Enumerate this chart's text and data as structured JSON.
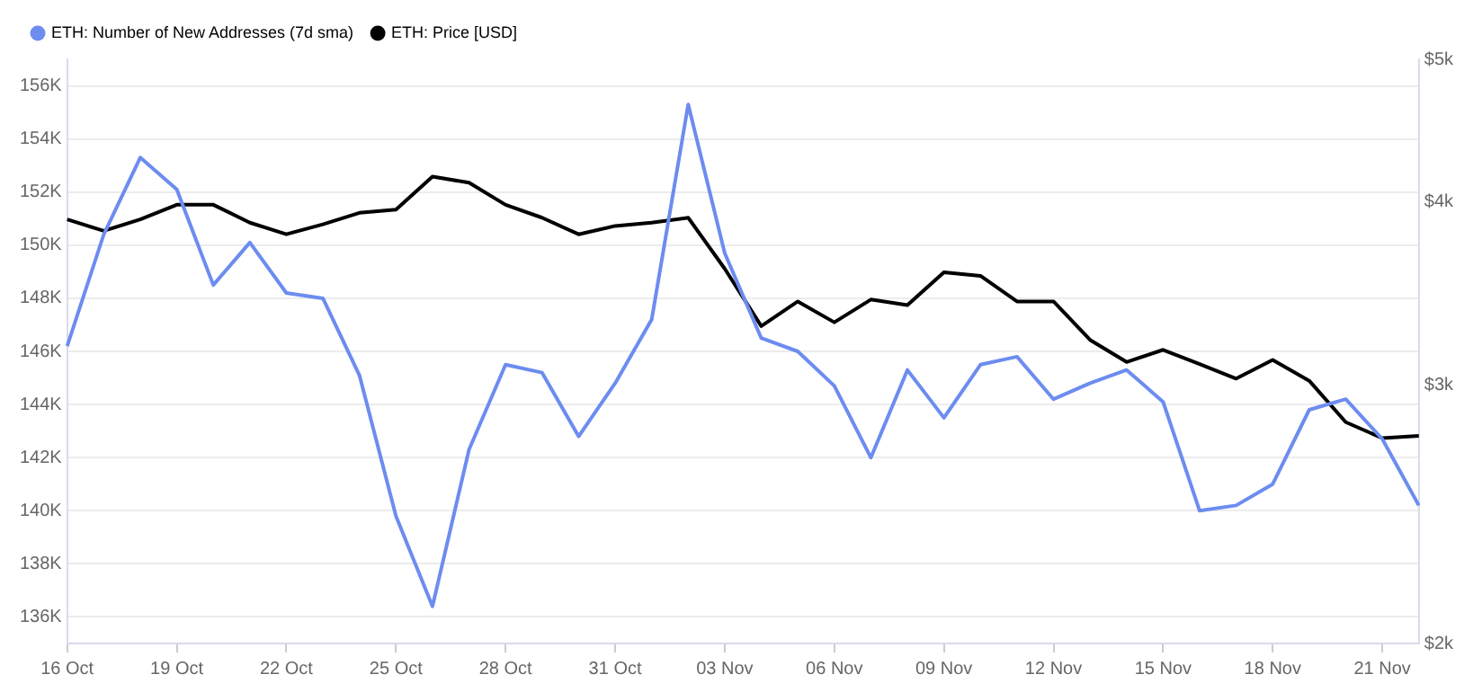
{
  "chart_data": {
    "type": "line",
    "categories": [
      "16 Oct",
      null,
      null,
      "19 Oct",
      null,
      null,
      "22 Oct",
      null,
      null,
      "25 Oct",
      null,
      null,
      "28 Oct",
      null,
      null,
      "31 Oct",
      null,
      null,
      "03 Nov",
      null,
      null,
      "06 Nov",
      null,
      null,
      "09 Nov",
      null,
      null,
      "12 Nov",
      null,
      null,
      "15 Nov",
      null,
      null,
      "18 Nov",
      null,
      null,
      "21 Nov",
      null
    ],
    "series": [
      {
        "name": "ETH: Number of New Addresses (7d sma)",
        "color": "#6c8cf0",
        "values": [
          146200,
          150400,
          153300,
          152100,
          148500,
          150100,
          148200,
          148000,
          145100,
          139800,
          136400,
          142300,
          145500,
          145200,
          142800,
          144800,
          147200,
          155300,
          149700,
          146500,
          146000,
          144700,
          142000,
          145300,
          143500,
          145500,
          145800,
          144200,
          144800,
          145300,
          144100,
          140000,
          140200,
          141000,
          143800,
          144200,
          142700,
          140200
        ]
      },
      {
        "name": "ETH: Price [USD]",
        "color": "#000000",
        "axis": "y2",
        "values": [
          3890,
          3820,
          3890,
          3980,
          3980,
          3870,
          3800,
          3860,
          3930,
          3950,
          4160,
          4120,
          3980,
          3900,
          3800,
          3850,
          3870,
          3900,
          3600,
          3290,
          3420,
          3310,
          3430,
          3400,
          3580,
          3560,
          3420,
          3420,
          3220,
          3110,
          3170,
          3100,
          3030,
          3120,
          3020,
          2830,
          2760,
          2770
        ]
      }
    ],
    "ylim": [
      135000,
      157000
    ],
    "yticks": [
      {
        "value": 136000,
        "label": "136K"
      },
      {
        "value": 138000,
        "label": "138K"
      },
      {
        "value": 140000,
        "label": "140K"
      },
      {
        "value": 142000,
        "label": "142K"
      },
      {
        "value": 144000,
        "label": "144K"
      },
      {
        "value": 146000,
        "label": "146K"
      },
      {
        "value": 148000,
        "label": "148K"
      },
      {
        "value": 150000,
        "label": "150K"
      },
      {
        "value": 152000,
        "label": "152K"
      },
      {
        "value": 154000,
        "label": "154K"
      },
      {
        "value": 156000,
        "label": "156K"
      }
    ],
    "y2lim": [
      2000,
      5000
    ],
    "y2ticks": [
      {
        "value": 2000,
        "label": "$2k"
      },
      {
        "value": 3000,
        "label": "$3k"
      },
      {
        "value": 4000,
        "label": "$4k"
      },
      {
        "value": 5000,
        "label": "$5k"
      }
    ],
    "log": "y2",
    "grid": "y",
    "legend": "top left",
    "marker": "none",
    "line_style": "solid"
  }
}
